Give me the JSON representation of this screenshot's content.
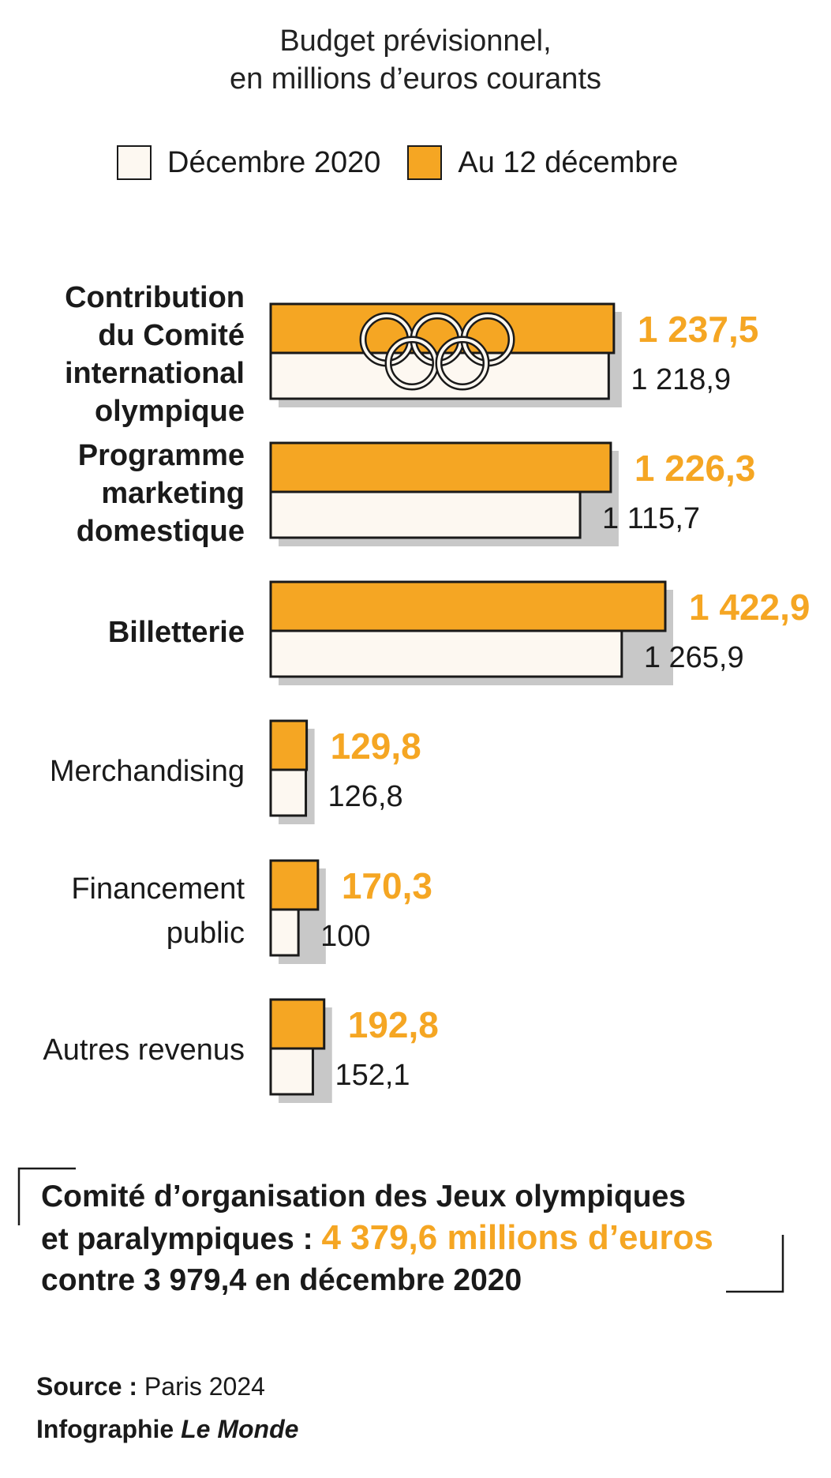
{
  "header": {
    "title_line1": "Budget prévisionnel,",
    "title_line2": "en millions d’euros courants"
  },
  "legend": [
    {
      "label": "Décembre 2020",
      "color": "#fdf8f1"
    },
    {
      "label": "Au 12 décembre",
      "color": "#f5a623"
    }
  ],
  "colors": {
    "current": "#f5a623",
    "previous": "#fdf8f1",
    "shadow": "#c8c8c8",
    "outline": "#1a1a1a"
  },
  "chart_data": {
    "type": "bar",
    "orientation": "horizontal",
    "categories": [
      "Contribution du Comité international olympique",
      "Programme marketing domestique",
      "Billetterie",
      "Merchandising",
      "Financement public",
      "Autres revenus"
    ],
    "category_lines": [
      [
        "Contribution",
        "du Comité",
        "international",
        "olympique"
      ],
      [
        "Programme",
        "marketing",
        "domestique"
      ],
      [
        "Billetterie"
      ],
      [
        "Merchandising"
      ],
      [
        "Financement",
        "public"
      ],
      [
        "Autres revenus"
      ]
    ],
    "category_bold": [
      true,
      true,
      true,
      false,
      false,
      false
    ],
    "series": [
      {
        "name": "Au 12 décembre",
        "values": [
          1237.5,
          1226.3,
          1422.9,
          129.8,
          170.3,
          192.8
        ],
        "labels": [
          "1 237,5",
          "1 226,3",
          "1 422,9",
          "129,8",
          "170,3",
          "192,8"
        ]
      },
      {
        "name": "Décembre 2020",
        "values": [
          1218.9,
          1115.7,
          1265.9,
          126.8,
          100,
          152.1
        ],
        "labels": [
          "1 218,9",
          "1 115,7",
          "1 265,9",
          "126,8",
          "100",
          "152,1"
        ]
      }
    ],
    "xlim": [
      0,
      1422.9
    ],
    "grid": false,
    "legend_position": "top",
    "icon": "olympic-rings-icon"
  },
  "footer": {
    "line1": "Comité d’organisation des Jeux olympiques",
    "line2_prefix": "et paralympiques : ",
    "line2_highlight": "4 379,6 millions d’euros",
    "line3": "contre 3 979,4 en décembre 2020"
  },
  "source": {
    "label": "Source :",
    "value": "Paris 2024"
  },
  "credit": {
    "prefix": "Infographie ",
    "brand": "Le Monde"
  }
}
